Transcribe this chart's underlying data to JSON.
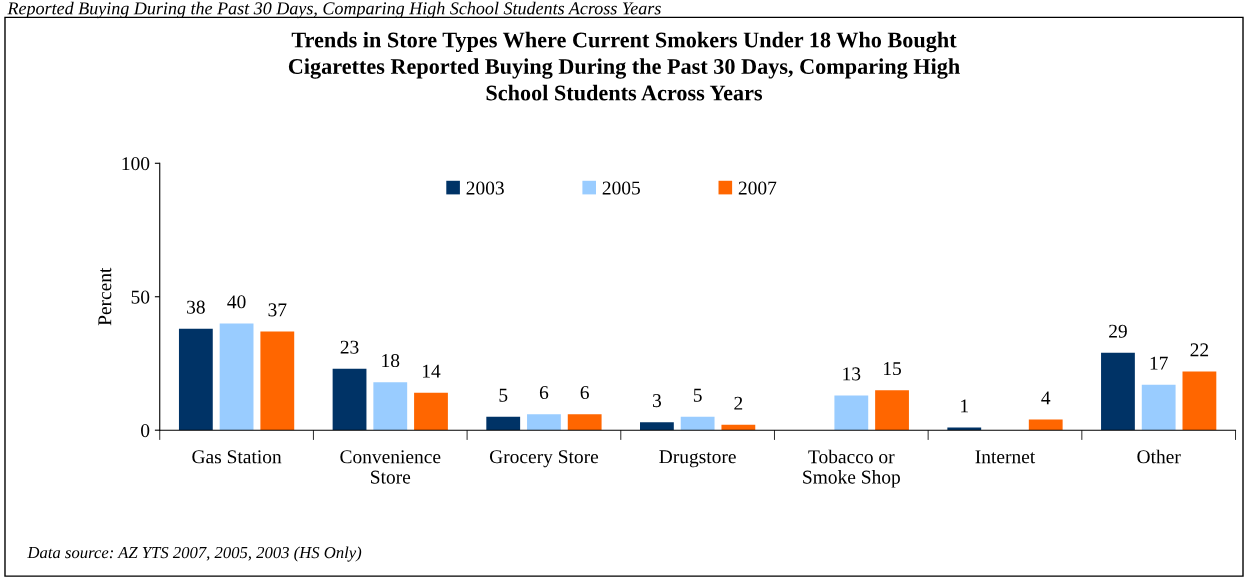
{
  "chart_data": {
    "type": "bar",
    "title": "Trends in Store Types Where Current Smokers Under 18 Who Bought\nCigarettes Reported Buying During the Past 30 Days, Comparing High\nSchool Students Across Years",
    "ylabel": "Percent",
    "annotations": [
      "Reported Buying During the Past 30 Days, Comparing High School Students Across Years",
      "Data source: AZ YTS 2007, 2005, 2003 (HS Only)"
    ],
    "categories": [
      "Gas Station",
      "Convenience\nStore",
      "Grocery Store",
      "Drugstore",
      "Tobacco or\nSmoke Shop",
      "Internet",
      "Other"
    ],
    "series": [
      {
        "name": "2003",
        "color": "#003366",
        "values": [
          38,
          23,
          5,
          3,
          null,
          1,
          29
        ]
      },
      {
        "name": "2005",
        "color": "#99ccff",
        "values": [
          40,
          18,
          6,
          5,
          13,
          null,
          17
        ]
      },
      {
        "name": "2007",
        "color": "#ff6600",
        "values": [
          37,
          14,
          6,
          2,
          15,
          4,
          22
        ]
      }
    ],
    "ylim": [
      0,
      100
    ],
    "yticks": [
      0,
      50,
      100
    ],
    "grid": false,
    "legend": "top",
    "data_labels": true
  }
}
